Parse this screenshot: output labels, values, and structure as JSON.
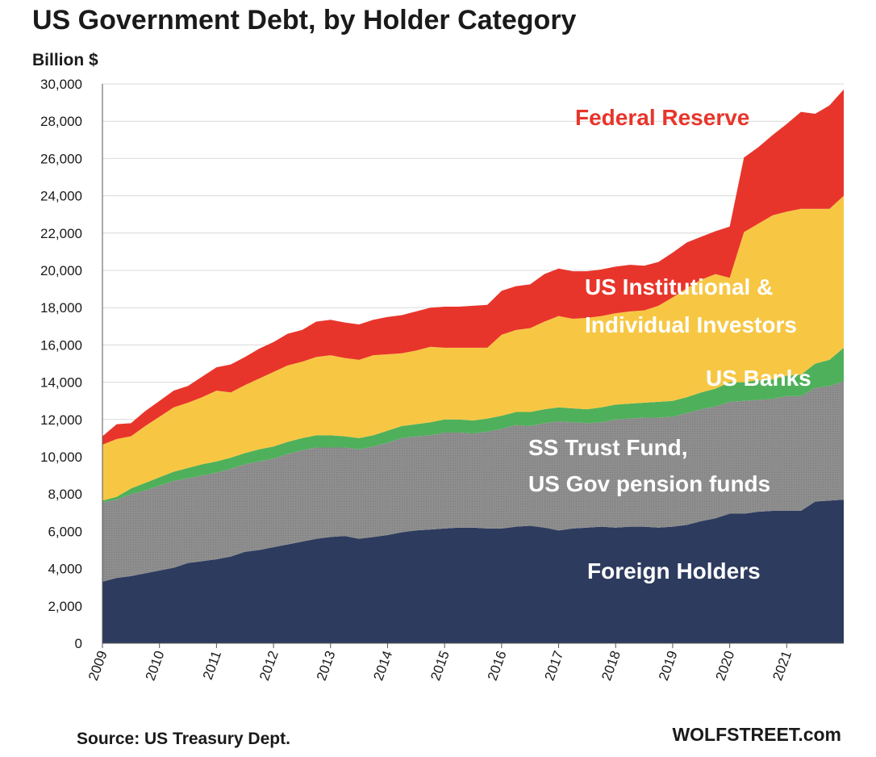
{
  "chart_data": {
    "type": "area",
    "title": "US Government Debt, by Holder Category",
    "ylabel": "Billion $",
    "ylim": [
      0,
      30000
    ],
    "yticks": [
      "0",
      "2,000",
      "4,000",
      "6,000",
      "8,000",
      "10,000",
      "12,000",
      "14,000",
      "16,000",
      "18,000",
      "20,000",
      "22,000",
      "24,000",
      "26,000",
      "28,000",
      "30,000"
    ],
    "ytick_values": [
      0,
      2000,
      4000,
      6000,
      8000,
      10000,
      12000,
      14000,
      16000,
      18000,
      20000,
      22000,
      24000,
      26000,
      28000,
      30000
    ],
    "xticks": [
      "2009",
      "2010",
      "2011",
      "2012",
      "2013",
      "2014",
      "2015",
      "2016",
      "2017",
      "2018",
      "2019",
      "2020",
      "2021"
    ],
    "xlim": [
      2009.0,
      2022.0
    ],
    "grid": true,
    "stacked": true,
    "x": [
      2009.0,
      2009.25,
      2009.5,
      2009.75,
      2010.0,
      2010.25,
      2010.5,
      2010.75,
      2011.0,
      2011.25,
      2011.5,
      2011.75,
      2012.0,
      2012.25,
      2012.5,
      2012.75,
      2013.0,
      2013.25,
      2013.5,
      2013.75,
      2014.0,
      2014.25,
      2014.5,
      2014.75,
      2015.0,
      2015.25,
      2015.5,
      2015.75,
      2016.0,
      2016.25,
      2016.5,
      2016.75,
      2017.0,
      2017.25,
      2017.5,
      2017.75,
      2018.0,
      2018.25,
      2018.5,
      2018.75,
      2019.0,
      2019.25,
      2019.5,
      2019.75,
      2020.0,
      2020.25,
      2020.5,
      2020.75,
      2021.0,
      2021.25,
      2021.5,
      2021.75,
      2022.0
    ],
    "series": [
      {
        "name": "Foreign Holders",
        "color": "#2d3b5e",
        "values": [
          3300,
          3500,
          3600,
          3750,
          3900,
          4050,
          4300,
          4400,
          4500,
          4650,
          4900,
          5000,
          5150,
          5300,
          5450,
          5600,
          5700,
          5750,
          5600,
          5700,
          5800,
          5950,
          6050,
          6100,
          6150,
          6200,
          6200,
          6150,
          6150,
          6250,
          6300,
          6200,
          6050,
          6150,
          6200,
          6250,
          6200,
          6250,
          6250,
          6200,
          6250,
          6350,
          6550,
          6700,
          6950,
          6950,
          7050,
          7100,
          7100,
          7100,
          7600,
          7650,
          7700
        ]
      },
      {
        "name": "SS Trust Fund, US Gov pension funds",
        "color": "#8e8e8e",
        "values": [
          4250,
          4200,
          4400,
          4450,
          4550,
          4650,
          4550,
          4600,
          4650,
          4700,
          4700,
          4750,
          4750,
          4850,
          4900,
          4900,
          4800,
          4750,
          4800,
          4850,
          4950,
          5050,
          5050,
          5050,
          5150,
          5100,
          5050,
          5200,
          5350,
          5450,
          5350,
          5600,
          5850,
          5700,
          5600,
          5600,
          5800,
          5800,
          5850,
          5900,
          5900,
          6000,
          6000,
          6000,
          6000,
          6050,
          6000,
          6000,
          6150,
          6150,
          6100,
          6150,
          6350
        ]
      },
      {
        "name": "US Banks",
        "color": "#4fb05b",
        "values": [
          100,
          150,
          300,
          400,
          450,
          500,
          550,
          600,
          600,
          600,
          600,
          650,
          650,
          650,
          650,
          650,
          650,
          600,
          600,
          600,
          650,
          650,
          650,
          700,
          700,
          700,
          700,
          700,
          700,
          700,
          750,
          750,
          750,
          750,
          750,
          800,
          800,
          800,
          800,
          850,
          850,
          850,
          900,
          950,
          1050,
          1000,
          1050,
          1050,
          1100,
          1150,
          1300,
          1400,
          1800
        ]
      },
      {
        "name": "US Institutional & Individual Investors",
        "color": "#f7c744",
        "values": [
          3000,
          3100,
          2800,
          3050,
          3250,
          3450,
          3500,
          3600,
          3800,
          3500,
          3650,
          3800,
          4000,
          4100,
          4100,
          4200,
          4300,
          4200,
          4200,
          4300,
          4100,
          3900,
          3950,
          4050,
          3850,
          3850,
          3900,
          3800,
          4350,
          4400,
          4500,
          4700,
          4900,
          4800,
          4900,
          4900,
          4900,
          4950,
          4950,
          5150,
          5550,
          5850,
          6050,
          6150,
          5600,
          8050,
          8400,
          8800,
          8800,
          8900,
          8300,
          8100,
          8150
        ]
      },
      {
        "name": "Federal Reserve",
        "color": "#e8352b",
        "values": [
          450,
          800,
          700,
          800,
          850,
          900,
          900,
          1100,
          1250,
          1500,
          1500,
          1600,
          1600,
          1700,
          1700,
          1900,
          1900,
          1900,
          1900,
          1900,
          2000,
          2050,
          2100,
          2100,
          2200,
          2200,
          2250,
          2300,
          2350,
          2350,
          2350,
          2550,
          2550,
          2550,
          2500,
          2500,
          2500,
          2500,
          2400,
          2350,
          2400,
          2450,
          2300,
          2300,
          2750,
          4000,
          4100,
          4300,
          4700,
          5200,
          5100,
          5550,
          5700
        ]
      }
    ],
    "annotations": {
      "federal_reserve": "Federal Reserve",
      "investors_line1": "US Institutional &",
      "investors_line2": "Individual Investors",
      "banks": "US Banks",
      "trust_line1": "SS Trust Fund,",
      "trust_line2": "US Gov pension funds",
      "foreign": "Foreign Holders"
    },
    "label_colors": {
      "federal_reserve": "#e8352b",
      "investors": "#ffffff",
      "banks": "#ffffff",
      "trust": "#ffffff",
      "foreign": "#ffffff"
    },
    "source": "Source: US Treasury Dept.",
    "brand": "WOLFSTREET.com"
  }
}
